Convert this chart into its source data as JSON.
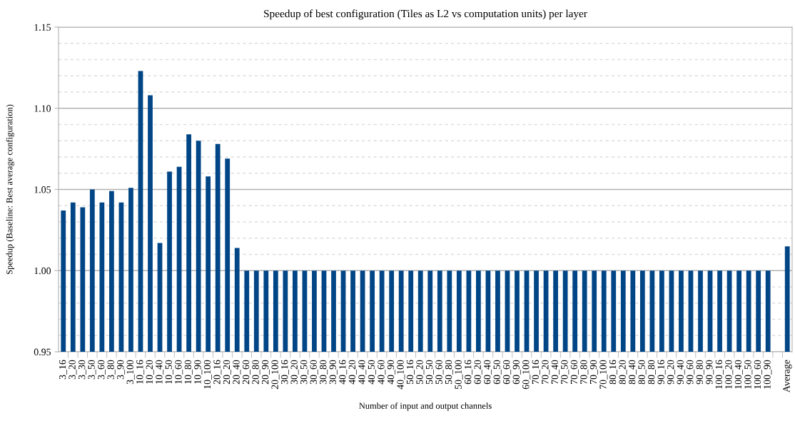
{
  "chart_data": {
    "type": "bar",
    "title": "Speedup of best configuration (Tiles as L2 vs computation units) per layer",
    "xlabel": "Number of input and output channels",
    "ylabel": "Speedup (Baseline: Best average configuration)",
    "categories": [
      "3_16",
      "3_20",
      "3_30",
      "3_50",
      "3_60",
      "3_80",
      "3_90",
      "3_100",
      "10_16",
      "10_20",
      "10_40",
      "10_50",
      "10_60",
      "10_80",
      "10_90",
      "10_100",
      "20_16",
      "20_20",
      "20_40",
      "20_60",
      "20_80",
      "20_90",
      "20_100",
      "30_16",
      "30_20",
      "30_50",
      "30_60",
      "30_80",
      "30_90",
      "40_16",
      "40_20",
      "40_40",
      "40_50",
      "40_60",
      "40_90",
      "40_100",
      "50_16",
      "50_20",
      "50_50",
      "50_60",
      "50_80",
      "50_100",
      "60_16",
      "60_20",
      "60_40",
      "60_50",
      "60_60",
      "60_90",
      "60_100",
      "70_16",
      "70_20",
      "70_40",
      "70_50",
      "70_60",
      "70_80",
      "70_90",
      "70_100",
      "80_16",
      "80_20",
      "80_40",
      "80_50",
      "80_80",
      "90_16",
      "90_20",
      "90_40",
      "90_60",
      "90_80",
      "90_90",
      "100_16",
      "100_20",
      "100_40",
      "100_50",
      "100_60",
      "100_90",
      null,
      "Average"
    ],
    "values": [
      1.037,
      1.042,
      1.039,
      1.05,
      1.042,
      1.049,
      1.042,
      1.051,
      1.123,
      1.108,
      1.017,
      1.061,
      1.064,
      1.084,
      1.08,
      1.058,
      1.078,
      1.069,
      1.014,
      1.0,
      1.0,
      1.0,
      1.0,
      1.0,
      1.0,
      1.0,
      1.0,
      1.0,
      1.0,
      1.0,
      1.0,
      1.0,
      1.0,
      1.0,
      1.0,
      1.0,
      1.0,
      1.0,
      1.0,
      1.0,
      1.0,
      1.0,
      1.0,
      1.0,
      1.0,
      1.0,
      1.0,
      1.0,
      1.0,
      1.0,
      1.0,
      1.0,
      1.0,
      1.0,
      1.0,
      1.0,
      1.0,
      1.0,
      1.0,
      1.0,
      1.0,
      1.0,
      1.0,
      1.0,
      1.0,
      1.0,
      1.0,
      1.0,
      1.0,
      1.0,
      1.0,
      1.0,
      1.0,
      1.0,
      null,
      1.015
    ],
    "color": "#004586",
    "ylim": [
      0.95,
      1.15
    ],
    "yticks": [
      {
        "value": 0.95,
        "label": "0.95"
      },
      {
        "value": 0.96,
        "label": null
      },
      {
        "value": 0.97,
        "label": null
      },
      {
        "value": 0.98,
        "label": null
      },
      {
        "value": 0.99,
        "label": null
      },
      {
        "value": 1.0,
        "label": "1.00"
      },
      {
        "value": 1.01,
        "label": null
      },
      {
        "value": 1.02,
        "label": null
      },
      {
        "value": 1.03,
        "label": null
      },
      {
        "value": 1.04,
        "label": null
      },
      {
        "value": 1.05,
        "label": "1.05"
      },
      {
        "value": 1.06,
        "label": null
      },
      {
        "value": 1.07,
        "label": null
      },
      {
        "value": 1.08,
        "label": null
      },
      {
        "value": 1.09,
        "label": null
      },
      {
        "value": 1.1,
        "label": "1.10"
      },
      {
        "value": 1.11,
        "label": null
      },
      {
        "value": 1.12,
        "label": null
      },
      {
        "value": 1.13,
        "label": null
      },
      {
        "value": 1.14,
        "label": null
      },
      {
        "value": 1.15,
        "label": "1.15"
      }
    ],
    "grid": "y"
  }
}
